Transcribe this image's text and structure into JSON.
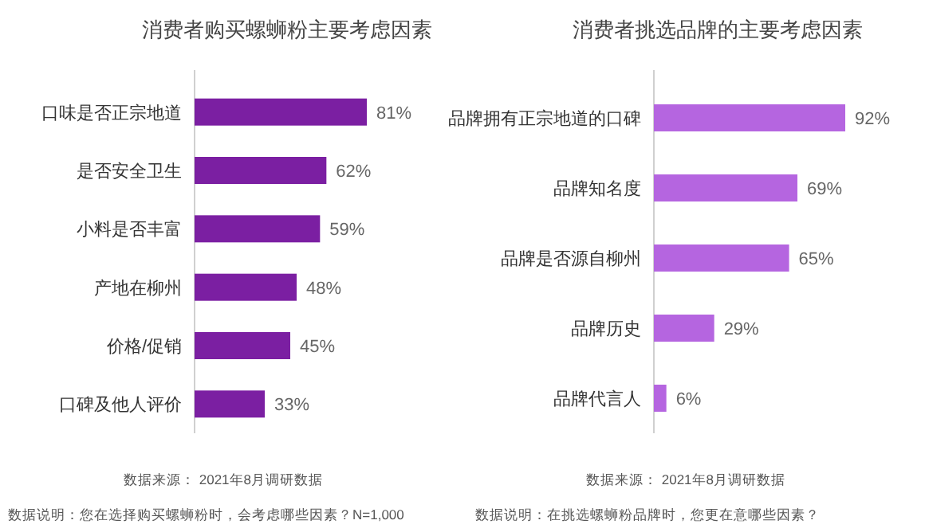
{
  "chart_data": [
    {
      "type": "bar",
      "orientation": "horizontal",
      "title": "消费者购买螺蛳粉主要考虑因素",
      "categories": [
        "口味是否正宗地道",
        "是否安全卫生",
        "小料是否丰富",
        "产地在柳州",
        "价格/促销",
        "口碑及他人评价"
      ],
      "values": [
        81,
        62,
        59,
        48,
        45,
        33
      ],
      "value_labels": [
        "81%",
        "62%",
        "59%",
        "48%",
        "45%",
        "33%"
      ],
      "color": "#7b1fa2",
      "annotations": [
        "数据来源： 2021年8月调研数据",
        "数据说明：您在选择购买螺蛳粉时，会考虑哪些因素？N=1,000"
      ]
    },
    {
      "type": "bar",
      "orientation": "horizontal",
      "title": "消费者挑选品牌的主要考虑因素",
      "categories": [
        "品牌拥有正宗地道的口碑",
        "品牌知名度",
        "品牌是否源自柳州",
        "品牌历史",
        "品牌代言人"
      ],
      "values": [
        92,
        69,
        65,
        29,
        6
      ],
      "value_labels": [
        "92%",
        "69%",
        "65%",
        "29%",
        "6%"
      ],
      "color": "#b565e0",
      "annotations": [
        "数据来源： 2021年8月调研数据",
        "数据说明：在挑选螺蛳粉品牌时，您更在意哪些因素？"
      ]
    }
  ]
}
